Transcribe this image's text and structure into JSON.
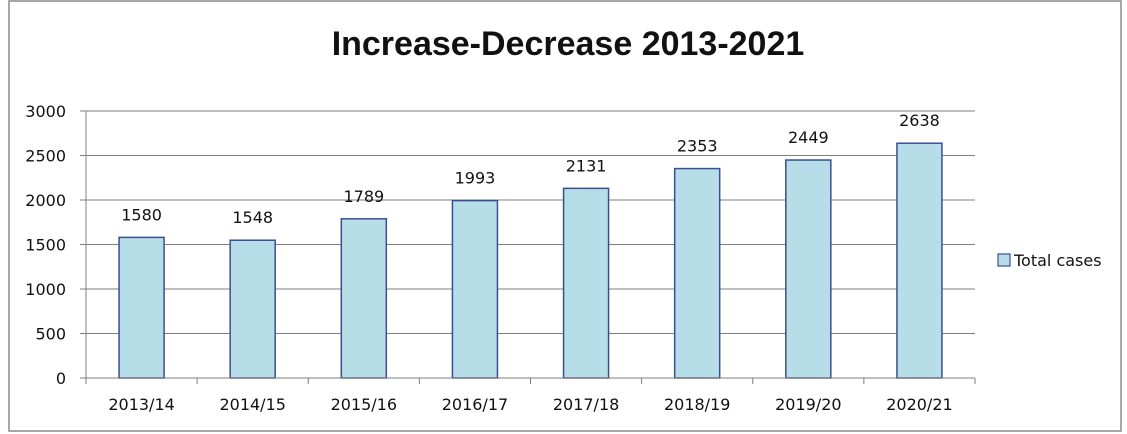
{
  "chart_data": {
    "type": "bar",
    "title": "Increase-Decrease 2013-2021",
    "xlabel": "",
    "ylabel": "",
    "categories": [
      "2013/14",
      "2014/15",
      "2015/16",
      "2016/17",
      "2017/18",
      "2018/19",
      "2019/20",
      "2020/21"
    ],
    "series": [
      {
        "name": "Total cases",
        "values": [
          1580,
          1548,
          1789,
          1993,
          2131,
          2353,
          2449,
          2638
        ],
        "color": "#b7dde8",
        "border_color": "#3b4f8f"
      }
    ],
    "ylim": [
      0,
      3000
    ],
    "yticks": [
      0,
      500,
      1000,
      1500,
      2000,
      2500,
      3000
    ],
    "grid": true,
    "legend_position": "right",
    "data_labels": true
  }
}
